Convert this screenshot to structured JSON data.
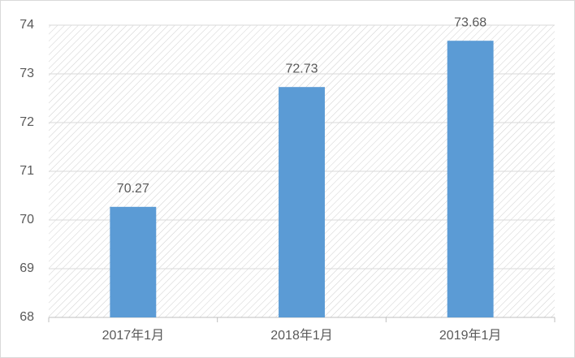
{
  "chart_data": {
    "type": "bar",
    "categories": [
      "2017年1月",
      "2018年1月",
      "2019年1月"
    ],
    "values": [
      70.27,
      72.73,
      73.68
    ],
    "color": "#5b9bd5",
    "ylim": [
      68,
      74
    ],
    "yticks": [
      68,
      69,
      70,
      71,
      72,
      73,
      74
    ],
    "grid": true
  }
}
